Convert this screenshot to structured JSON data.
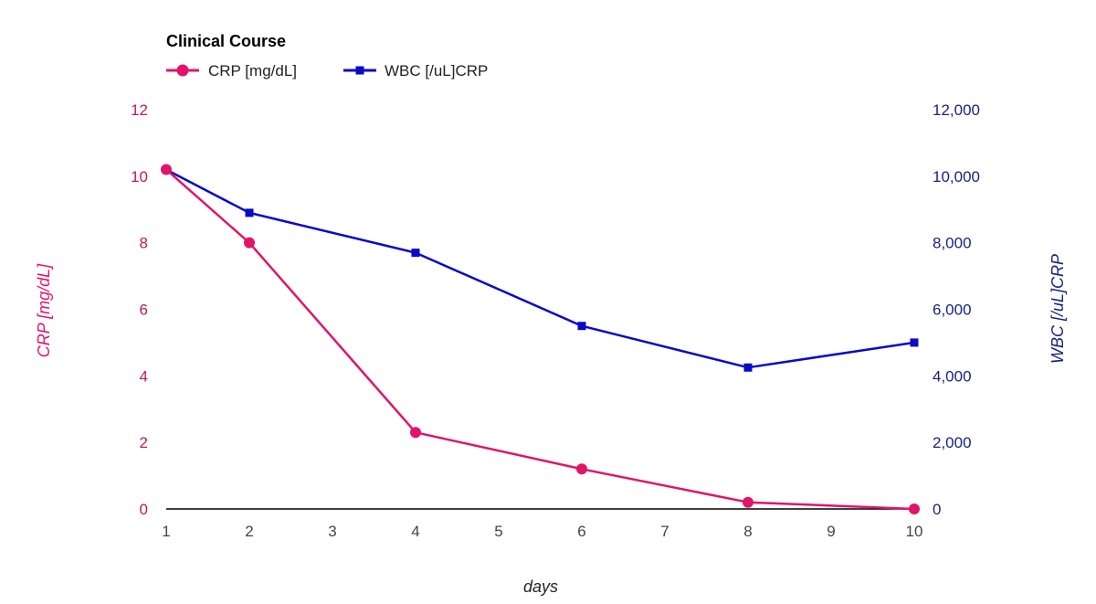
{
  "colors": {
    "crp": "#e0156a",
    "wbc": "#0a0ac8",
    "left_axis": "#c2185b",
    "right_axis": "#1a237e",
    "baseline": "#000000"
  },
  "chart_data": {
    "type": "line",
    "title": "Clinical Course",
    "xlabel": "days",
    "x_ticks": [
      "1",
      "2",
      "3",
      "4",
      "5",
      "6",
      "7",
      "8",
      "9",
      "10"
    ],
    "xlim": [
      1,
      10
    ],
    "grid": false,
    "legend_position": "top-left",
    "y_left": {
      "label": "CRP [mg/dL]",
      "lim": [
        0,
        12
      ],
      "ticks": [
        "0",
        "2",
        "4",
        "6",
        "8",
        "10",
        "12"
      ]
    },
    "y_right": {
      "label": "WBC [/uL]CRP",
      "lim": [
        0,
        12000
      ],
      "ticks": [
        "0",
        "2,000",
        "4,000",
        "6,000",
        "8,000",
        "10,000",
        "12,000"
      ]
    },
    "series": [
      {
        "name": "CRP [mg/dL]",
        "axis": "left",
        "marker": "circle",
        "x": [
          1,
          2,
          4,
          6,
          8,
          10
        ],
        "y": [
          10.2,
          8.0,
          2.3,
          1.2,
          0.2,
          0.0
        ]
      },
      {
        "name": "WBC [/uL]CRP",
        "axis": "right",
        "marker": "square",
        "x": [
          1,
          2,
          4,
          6,
          8,
          10
        ],
        "y": [
          10200,
          8900,
          7700,
          5500,
          4250,
          5000
        ]
      }
    ]
  }
}
